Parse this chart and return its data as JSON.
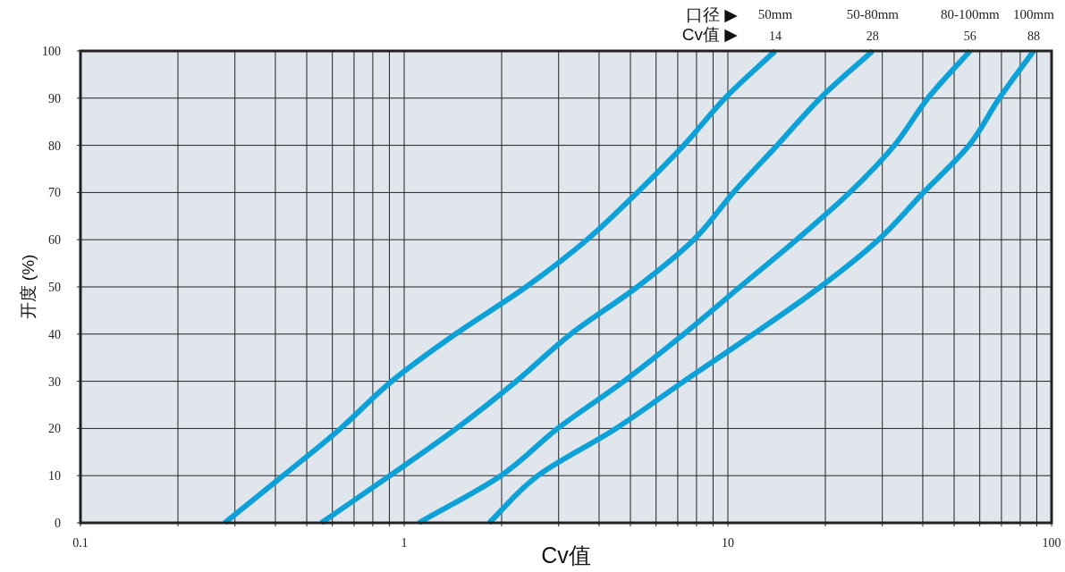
{
  "chart_data": {
    "type": "line",
    "xlabel": "Cv值",
    "ylabel": "开度 (%)",
    "annotations": [
      "口径 ▶",
      "Cv值 ▶",
      {
        "text": "14",
        "x": 14,
        "y": 100
      },
      {
        "text": "28",
        "x": 28,
        "y": 100
      },
      {
        "text": "56",
        "x": 56,
        "y": 100
      },
      {
        "text": "88",
        "x": 88,
        "y": 100
      }
    ],
    "log": "x",
    "grid": true,
    "xlim": [
      0.1,
      100
    ],
    "ylim": [
      0,
      100
    ],
    "xticks": [
      0.1,
      {
        "value": 0.2,
        "label": null
      },
      {
        "value": 0.3,
        "label": null
      },
      {
        "value": 0.4,
        "label": null
      },
      {
        "value": 0.5,
        "label": null
      },
      {
        "value": 0.6,
        "label": null
      },
      {
        "value": 0.7,
        "label": null
      },
      {
        "value": 0.8,
        "label": null
      },
      {
        "value": 0.9,
        "label": null
      },
      1,
      {
        "value": 2,
        "label": null
      },
      {
        "value": 3,
        "label": null
      },
      {
        "value": 4,
        "label": null
      },
      {
        "value": 5,
        "label": null
      },
      {
        "value": 6,
        "label": null
      },
      {
        "value": 7,
        "label": null
      },
      {
        "value": 8,
        "label": null
      },
      {
        "value": 9,
        "label": null
      },
      10,
      {
        "value": 20,
        "label": null
      },
      {
        "value": 30,
        "label": null
      },
      {
        "value": 40,
        "label": null
      },
      {
        "value": 50,
        "label": null
      },
      {
        "value": 60,
        "label": null
      },
      {
        "value": 70,
        "label": null
      },
      {
        "value": 80,
        "label": null
      },
      {
        "value": 90,
        "label": null
      },
      100
    ],
    "yticks": [
      0,
      10,
      20,
      30,
      40,
      50,
      60,
      70,
      80,
      90,
      100
    ],
    "series": [
      {
        "name": "50mm",
        "color": "#0ea1d8",
        "x": [
          0.279,
          0.423,
          0.636,
          0.915,
          1.44,
          2.38,
          3.67,
          5.25,
          7.31,
          9.8,
          14
        ],
        "values": [
          0,
          10,
          20,
          30,
          40,
          50,
          60,
          70,
          80,
          90,
          100
        ]
      },
      {
        "name": "50-80mm",
        "color": "#0ea1d8",
        "x": [
          0.555,
          0.903,
          1.45,
          2.22,
          3.27,
          5.25,
          7.85,
          10.4,
          14.2,
          19.3,
          28
        ],
        "values": [
          0,
          10,
          20,
          30,
          40,
          50,
          60,
          70,
          80,
          90,
          100
        ]
      },
      {
        "name": "80-100mm",
        "color": "#0ea1d8",
        "x": [
          1.11,
          1.99,
          2.98,
          4.77,
          7.31,
          10.9,
          16.3,
          23.8,
          32.7,
          41.5,
          56
        ],
        "values": [
          0,
          10,
          20,
          30,
          40,
          50,
          60,
          70,
          80,
          90,
          100
        ]
      },
      {
        "name": "100mm",
        "color": "#0ea1d8",
        "x": [
          1.83,
          2.59,
          4.51,
          7.31,
          12.0,
          19.3,
          29.2,
          40.2,
          55.6,
          69.0,
          88
        ],
        "values": [
          0,
          10,
          20,
          30,
          40,
          50,
          60,
          70,
          80,
          90,
          100
        ]
      }
    ]
  }
}
